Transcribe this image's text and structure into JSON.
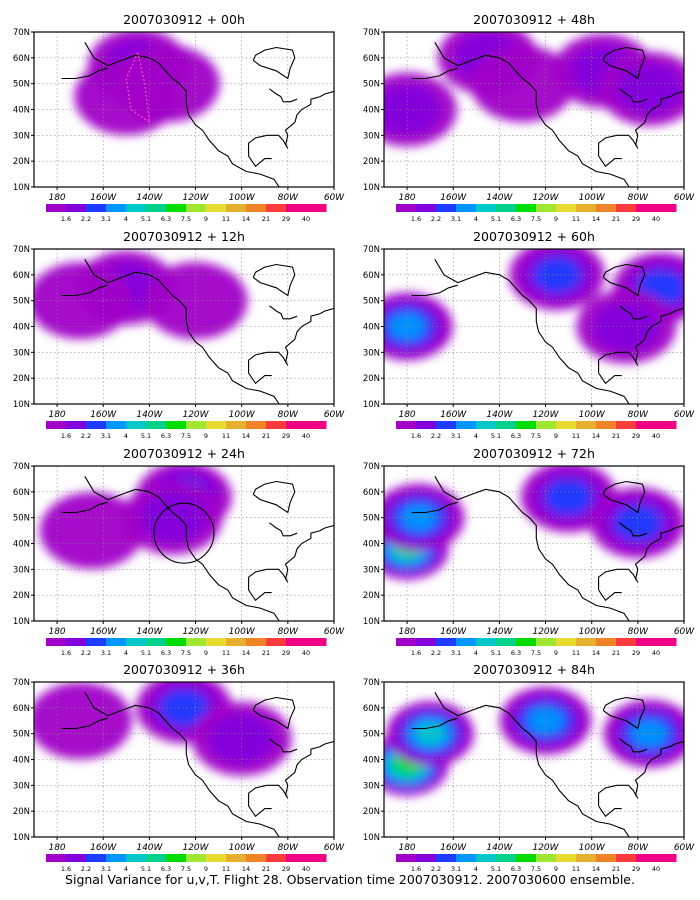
{
  "caption": "Signal Variance for u,v,T. Flight 28. Observation time 2007030912. 2007030600 ensemble.",
  "colorbar": {
    "labels": [
      "1.6",
      "2.2",
      "3.1",
      "4",
      "5.1",
      "6.3",
      "7.5",
      "9",
      "11",
      "14",
      "21",
      "29",
      "40"
    ],
    "colors": [
      "#a000c8",
      "#8200dc",
      "#1e3cff",
      "#0096ff",
      "#00c8c8",
      "#00d28c",
      "#00dc00",
      "#a0e632",
      "#e6dc32",
      "#e6af2d",
      "#f08228",
      "#fa3c3c",
      "#f00082"
    ]
  },
  "map": {
    "lat_ticks": [
      "10N",
      "20N",
      "30N",
      "40N",
      "50N",
      "60N",
      "70N"
    ],
    "lon_ticks": [
      "180",
      "160W",
      "140W",
      "120W",
      "100W",
      "80W",
      "60W"
    ],
    "lat_range": [
      10,
      70
    ],
    "lon_range": [
      -190,
      -60
    ]
  },
  "chart_data": [
    {
      "type": "heatmap",
      "title": "2007030912 + 00h",
      "forecast_hour": 0,
      "blobs": [
        {
          "lon": -145,
          "lat": 57,
          "level": 2
        },
        {
          "lon": -150,
          "lat": 45,
          "level": 1
        },
        {
          "lon": -132,
          "lat": 50,
          "level": 1
        }
      ],
      "observation_track": true,
      "circle": null
    },
    {
      "type": "heatmap",
      "title": "2007030912 + 48h",
      "forecast_hour": 48,
      "blobs": [
        {
          "lon": -180,
          "lat": 40,
          "level": 2
        },
        {
          "lon": -145,
          "lat": 60,
          "level": 2
        },
        {
          "lon": -95,
          "lat": 55,
          "level": 2
        },
        {
          "lon": -75,
          "lat": 48,
          "level": 2
        },
        {
          "lon": -130,
          "lat": 50,
          "level": 1
        }
      ],
      "observation_track": false,
      "circle": null
    },
    {
      "type": "heatmap",
      "title": "2007030912 + 12h",
      "forecast_hour": 12,
      "blobs": [
        {
          "lon": -150,
          "lat": 55,
          "level": 2
        },
        {
          "lon": -170,
          "lat": 50,
          "level": 1
        },
        {
          "lon": -120,
          "lat": 50,
          "level": 1
        }
      ],
      "observation_track": false,
      "circle": null
    },
    {
      "type": "heatmap",
      "title": "2007030912 + 60h",
      "forecast_hour": 60,
      "blobs": [
        {
          "lon": -180,
          "lat": 40,
          "level": 4
        },
        {
          "lon": -115,
          "lat": 60,
          "level": 3
        },
        {
          "lon": -70,
          "lat": 55,
          "level": 3
        },
        {
          "lon": -85,
          "lat": 40,
          "level": 2
        }
      ],
      "observation_track": false,
      "circle": null
    },
    {
      "type": "heatmap",
      "title": "2007030912 + 24h",
      "forecast_hour": 24,
      "blobs": [
        {
          "lon": -125,
          "lat": 58,
          "level": 3
        },
        {
          "lon": -130,
          "lat": 50,
          "level": 2
        },
        {
          "lon": -165,
          "lat": 45,
          "level": 1
        }
      ],
      "observation_track": false,
      "circle": {
        "lon": -125,
        "lat": 44
      }
    },
    {
      "type": "heatmap",
      "title": "2007030912 + 72h",
      "forecast_hour": 72,
      "blobs": [
        {
          "lon": -180,
          "lat": 38,
          "level": 6
        },
        {
          "lon": -175,
          "lat": 50,
          "level": 4
        },
        {
          "lon": -110,
          "lat": 58,
          "level": 3
        },
        {
          "lon": -80,
          "lat": 48,
          "level": 3
        }
      ],
      "observation_track": false,
      "circle": null
    },
    {
      "type": "heatmap",
      "title": "2007030912 + 36h",
      "forecast_hour": 36,
      "blobs": [
        {
          "lon": -125,
          "lat": 60,
          "level": 3
        },
        {
          "lon": -100,
          "lat": 48,
          "level": 2
        },
        {
          "lon": -170,
          "lat": 55,
          "level": 1
        }
      ],
      "observation_track": false,
      "circle": null
    },
    {
      "type": "heatmap",
      "title": "2007030912 + 84h",
      "forecast_hour": 84,
      "blobs": [
        {
          "lon": -180,
          "lat": 38,
          "level": 7
        },
        {
          "lon": -170,
          "lat": 50,
          "level": 5
        },
        {
          "lon": -120,
          "lat": 55,
          "level": 4
        },
        {
          "lon": -75,
          "lat": 50,
          "level": 4
        }
      ],
      "observation_track": false,
      "circle": null
    }
  ]
}
